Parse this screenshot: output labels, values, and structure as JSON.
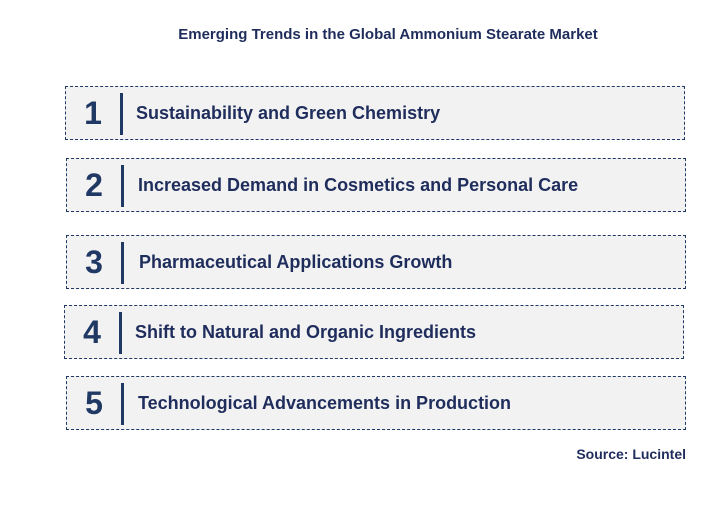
{
  "title": "Emerging Trends in the Global Ammonium Stearate Market",
  "trends": [
    {
      "number": "1",
      "label": "Sustainability and Green Chemistry"
    },
    {
      "number": "2",
      "label": "Increased Demand in Cosmetics and Personal Care"
    },
    {
      "number": "3",
      "label": "Pharmaceutical Applications Growth"
    },
    {
      "number": "4",
      "label": "Shift to Natural and Organic Ingredients"
    },
    {
      "number": "5",
      "label": "Technological Advancements in Production"
    }
  ],
  "source": "Source: Lucintel",
  "colors": {
    "accent": "#1f3864",
    "text": "#1f2d5c",
    "box_fill": "#f2f2f2"
  }
}
